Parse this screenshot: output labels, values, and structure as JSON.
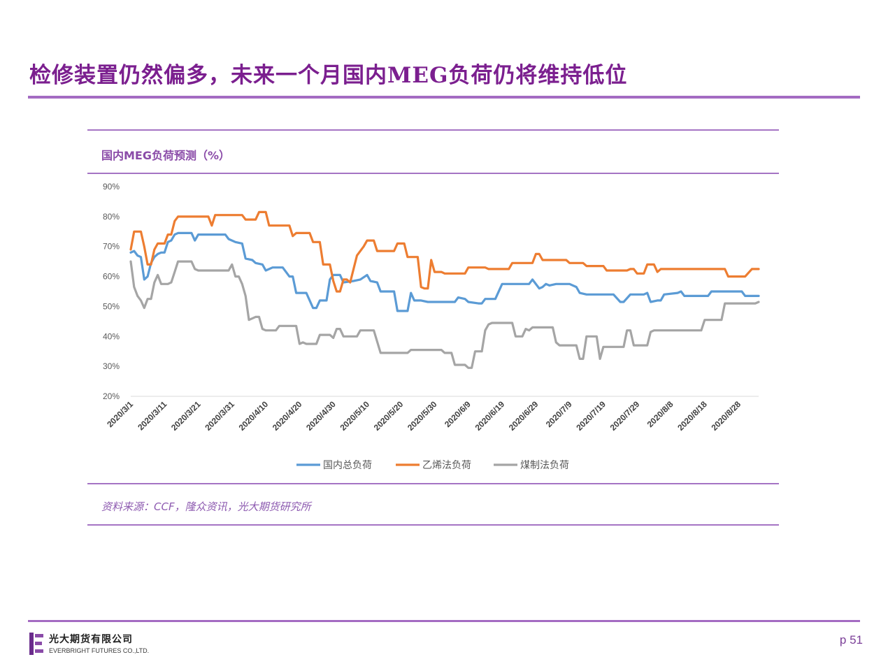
{
  "slide": {
    "title": "检修装置仍然偏多，未来一个月国内MEG负荷仍将维持低位",
    "page_number": "p 51",
    "source_note": "资料来源：CCF，隆众资讯，光大期货研究所",
    "logo": {
      "cn": "光大期货有限公司",
      "en": "EVERBRIGHT FUTURES CO.,LTD.",
      "icon": "everbright-logo-icon"
    },
    "accent_color": "#a46bc2"
  },
  "chart_data": {
    "type": "line",
    "title": "国内MEG负荷预测（%）",
    "xlabel": "",
    "ylabel": "",
    "ylim": [
      0.2,
      0.9
    ],
    "y_ticks": [
      "20%",
      "30%",
      "40%",
      "50%",
      "60%",
      "70%",
      "80%",
      "90%"
    ],
    "x_ticks": [
      "2020/3/1",
      "2020/3/11",
      "2020/3/21",
      "2020/3/31",
      "2020/4/10",
      "2020/4/20",
      "2020/4/30",
      "2020/5/10",
      "2020/5/20",
      "2020/5/30",
      "2020/6/9",
      "2020/6/19",
      "2020/6/29",
      "2020/7/9",
      "2020/7/19",
      "2020/7/29",
      "2020/8/8",
      "2020/8/18",
      "2020/8/28"
    ],
    "x_domain": [
      "2020/3/1",
      "2020/9/3"
    ],
    "grid": false,
    "legend_position": "bottom",
    "series": [
      {
        "name": "国内总负荷",
        "color": "#5b9bd5",
        "points": [
          [
            "2020/3/1",
            0.68
          ],
          [
            "2020/3/2",
            0.685
          ],
          [
            "2020/3/3",
            0.67
          ],
          [
            "2020/3/4",
            0.665
          ],
          [
            "2020/3/5",
            0.59
          ],
          [
            "2020/3/6",
            0.6
          ],
          [
            "2020/3/7",
            0.645
          ],
          [
            "2020/3/8",
            0.665
          ],
          [
            "2020/3/9",
            0.675
          ],
          [
            "2020/3/10",
            0.68
          ],
          [
            "2020/3/11",
            0.68
          ],
          [
            "2020/3/12",
            0.715
          ],
          [
            "2020/3/13",
            0.72
          ],
          [
            "2020/3/14",
            0.74
          ],
          [
            "2020/3/15",
            0.745
          ],
          [
            "2020/3/19",
            0.745
          ],
          [
            "2020/3/20",
            0.72
          ],
          [
            "2020/3/21",
            0.74
          ],
          [
            "2020/3/29",
            0.74
          ],
          [
            "2020/3/30",
            0.725
          ],
          [
            "2020/4/1",
            0.715
          ],
          [
            "2020/4/3",
            0.71
          ],
          [
            "2020/4/4",
            0.66
          ],
          [
            "2020/4/6",
            0.655
          ],
          [
            "2020/4/7",
            0.645
          ],
          [
            "2020/4/9",
            0.64
          ],
          [
            "2020/4/10",
            0.62
          ],
          [
            "2020/4/12",
            0.63
          ],
          [
            "2020/4/15",
            0.63
          ],
          [
            "2020/4/17",
            0.6
          ],
          [
            "2020/4/18",
            0.6
          ],
          [
            "2020/4/19",
            0.545
          ],
          [
            "2020/4/22",
            0.545
          ],
          [
            "2020/4/24",
            0.495
          ],
          [
            "2020/4/25",
            0.495
          ],
          [
            "2020/4/26",
            0.52
          ],
          [
            "2020/4/28",
            0.52
          ],
          [
            "2020/4/29",
            0.59
          ],
          [
            "2020/4/30",
            0.605
          ],
          [
            "2020/5/2",
            0.605
          ],
          [
            "2020/5/3",
            0.58
          ],
          [
            "2020/5/6",
            0.585
          ],
          [
            "2020/5/8",
            0.59
          ],
          [
            "2020/5/10",
            0.605
          ],
          [
            "2020/5/11",
            0.585
          ],
          [
            "2020/5/13",
            0.58
          ],
          [
            "2020/5/14",
            0.55
          ],
          [
            "2020/5/18",
            0.55
          ],
          [
            "2020/5/19",
            0.485
          ],
          [
            "2020/5/22",
            0.485
          ],
          [
            "2020/5/23",
            0.545
          ],
          [
            "2020/5/24",
            0.52
          ],
          [
            "2020/5/26",
            0.52
          ],
          [
            "2020/5/28",
            0.515
          ],
          [
            "2020/6/5",
            0.515
          ],
          [
            "2020/6/6",
            0.53
          ],
          [
            "2020/6/8",
            0.525
          ],
          [
            "2020/6/9",
            0.515
          ],
          [
            "2020/6/12",
            0.51
          ],
          [
            "2020/6/13",
            0.51
          ],
          [
            "2020/6/14",
            0.525
          ],
          [
            "2020/6/17",
            0.525
          ],
          [
            "2020/6/19",
            0.575
          ],
          [
            "2020/6/27",
            0.575
          ],
          [
            "2020/6/28",
            0.59
          ],
          [
            "2020/6/30",
            0.56
          ],
          [
            "2020/7/1",
            0.565
          ],
          [
            "2020/7/2",
            0.575
          ],
          [
            "2020/7/3",
            0.57
          ],
          [
            "2020/7/5",
            0.575
          ],
          [
            "2020/7/9",
            0.575
          ],
          [
            "2020/7/11",
            0.565
          ],
          [
            "2020/7/12",
            0.545
          ],
          [
            "2020/7/14",
            0.54
          ],
          [
            "2020/7/22",
            0.54
          ],
          [
            "2020/7/24",
            0.515
          ],
          [
            "2020/7/25",
            0.515
          ],
          [
            "2020/7/27",
            0.54
          ],
          [
            "2020/7/31",
            0.54
          ],
          [
            "2020/8/1",
            0.545
          ],
          [
            "2020/8/2",
            0.515
          ],
          [
            "2020/8/4",
            0.52
          ],
          [
            "2020/8/5",
            0.52
          ],
          [
            "2020/8/6",
            0.54
          ],
          [
            "2020/8/10",
            0.545
          ],
          [
            "2020/8/11",
            0.55
          ],
          [
            "2020/8/12",
            0.535
          ],
          [
            "2020/8/19",
            0.535
          ],
          [
            "2020/8/20",
            0.55
          ],
          [
            "2020/8/29",
            0.55
          ],
          [
            "2020/8/30",
            0.535
          ],
          [
            "2020/9/1",
            0.535
          ],
          [
            "2020/9/3",
            0.535
          ]
        ]
      },
      {
        "name": "乙烯法负荷",
        "color": "#ed7d31",
        "points": [
          [
            "2020/3/1",
            0.69
          ],
          [
            "2020/3/2",
            0.75
          ],
          [
            "2020/3/4",
            0.75
          ],
          [
            "2020/3/5",
            0.7
          ],
          [
            "2020/3/6",
            0.64
          ],
          [
            "2020/3/7",
            0.64
          ],
          [
            "2020/3/8",
            0.69
          ],
          [
            "2020/3/9",
            0.71
          ],
          [
            "2020/3/11",
            0.71
          ],
          [
            "2020/3/12",
            0.74
          ],
          [
            "2020/3/13",
            0.74
          ],
          [
            "2020/3/14",
            0.785
          ],
          [
            "2020/3/15",
            0.8
          ],
          [
            "2020/3/24",
            0.8
          ],
          [
            "2020/3/25",
            0.77
          ],
          [
            "2020/3/26",
            0.805
          ],
          [
            "2020/4/3",
            0.805
          ],
          [
            "2020/4/4",
            0.79
          ],
          [
            "2020/4/7",
            0.79
          ],
          [
            "2020/4/8",
            0.815
          ],
          [
            "2020/4/10",
            0.815
          ],
          [
            "2020/4/11",
            0.77
          ],
          [
            "2020/4/17",
            0.77
          ],
          [
            "2020/4/18",
            0.735
          ],
          [
            "2020/4/19",
            0.745
          ],
          [
            "2020/4/23",
            0.745
          ],
          [
            "2020/4/24",
            0.715
          ],
          [
            "2020/4/26",
            0.715
          ],
          [
            "2020/4/27",
            0.64
          ],
          [
            "2020/4/28",
            0.64
          ],
          [
            "2020/4/29",
            0.64
          ],
          [
            "2020/4/30",
            0.585
          ],
          [
            "2020/5/1",
            0.55
          ],
          [
            "2020/5/2",
            0.55
          ],
          [
            "2020/5/3",
            0.59
          ],
          [
            "2020/5/4",
            0.59
          ],
          [
            "2020/5/5",
            0.58
          ],
          [
            "2020/5/7",
            0.67
          ],
          [
            "2020/5/9",
            0.7
          ],
          [
            "2020/5/10",
            0.72
          ],
          [
            "2020/5/12",
            0.72
          ],
          [
            "2020/5/13",
            0.685
          ],
          [
            "2020/5/17",
            0.685
          ],
          [
            "2020/5/18",
            0.685
          ],
          [
            "2020/5/19",
            0.71
          ],
          [
            "2020/5/21",
            0.71
          ],
          [
            "2020/5/22",
            0.665
          ],
          [
            "2020/5/25",
            0.665
          ],
          [
            "2020/5/26",
            0.565
          ],
          [
            "2020/5/27",
            0.56
          ],
          [
            "2020/5/28",
            0.56
          ],
          [
            "2020/5/29",
            0.655
          ],
          [
            "2020/5/30",
            0.615
          ],
          [
            "2020/6/1",
            0.615
          ],
          [
            "2020/6/2",
            0.61
          ],
          [
            "2020/6/8",
            0.61
          ],
          [
            "2020/6/9",
            0.63
          ],
          [
            "2020/6/14",
            0.63
          ],
          [
            "2020/6/15",
            0.625
          ],
          [
            "2020/6/21",
            0.625
          ],
          [
            "2020/6/22",
            0.645
          ],
          [
            "2020/6/28",
            0.645
          ],
          [
            "2020/6/29",
            0.675
          ],
          [
            "2020/6/30",
            0.675
          ],
          [
            "2020/7/1",
            0.655
          ],
          [
            "2020/7/8",
            0.655
          ],
          [
            "2020/7/9",
            0.645
          ],
          [
            "2020/7/13",
            0.645
          ],
          [
            "2020/7/14",
            0.635
          ],
          [
            "2020/7/19",
            0.635
          ],
          [
            "2020/7/20",
            0.62
          ],
          [
            "2020/7/26",
            0.62
          ],
          [
            "2020/7/27",
            0.625
          ],
          [
            "2020/7/28",
            0.625
          ],
          [
            "2020/7/29",
            0.61
          ],
          [
            "2020/7/31",
            0.61
          ],
          [
            "2020/8/1",
            0.64
          ],
          [
            "2020/8/3",
            0.64
          ],
          [
            "2020/8/4",
            0.615
          ],
          [
            "2020/8/5",
            0.625
          ],
          [
            "2020/8/24",
            0.625
          ],
          [
            "2020/8/25",
            0.6
          ],
          [
            "2020/8/26",
            0.6
          ],
          [
            "2020/8/30",
            0.6
          ],
          [
            "2020/9/1",
            0.625
          ],
          [
            "2020/9/3",
            0.625
          ]
        ]
      },
      {
        "name": "煤制法负荷",
        "color": "#a5a5a5",
        "points": [
          [
            "2020/3/1",
            0.65
          ],
          [
            "2020/3/2",
            0.565
          ],
          [
            "2020/3/3",
            0.535
          ],
          [
            "2020/3/4",
            0.52
          ],
          [
            "2020/3/5",
            0.495
          ],
          [
            "2020/3/6",
            0.525
          ],
          [
            "2020/3/7",
            0.525
          ],
          [
            "2020/3/8",
            0.58
          ],
          [
            "2020/3/9",
            0.605
          ],
          [
            "2020/3/10",
            0.575
          ],
          [
            "2020/3/12",
            0.575
          ],
          [
            "2020/3/13",
            0.58
          ],
          [
            "2020/3/14",
            0.615
          ],
          [
            "2020/3/15",
            0.65
          ],
          [
            "2020/3/19",
            0.65
          ],
          [
            "2020/3/20",
            0.625
          ],
          [
            "2020/3/21",
            0.62
          ],
          [
            "2020/3/30",
            0.62
          ],
          [
            "2020/3/31",
            0.64
          ],
          [
            "2020/4/1",
            0.6
          ],
          [
            "2020/4/2",
            0.6
          ],
          [
            "2020/4/3",
            0.575
          ],
          [
            "2020/4/4",
            0.535
          ],
          [
            "2020/4/5",
            0.455
          ],
          [
            "2020/4/7",
            0.465
          ],
          [
            "2020/4/8",
            0.465
          ],
          [
            "2020/4/9",
            0.425
          ],
          [
            "2020/4/10",
            0.42
          ],
          [
            "2020/4/13",
            0.42
          ],
          [
            "2020/4/14",
            0.435
          ],
          [
            "2020/4/19",
            0.435
          ],
          [
            "2020/4/20",
            0.375
          ],
          [
            "2020/4/21",
            0.38
          ],
          [
            "2020/4/22",
            0.375
          ],
          [
            "2020/4/25",
            0.375
          ],
          [
            "2020/4/26",
            0.405
          ],
          [
            "2020/4/29",
            0.405
          ],
          [
            "2020/4/30",
            0.395
          ],
          [
            "2020/5/1",
            0.425
          ],
          [
            "2020/5/2",
            0.425
          ],
          [
            "2020/5/3",
            0.4
          ],
          [
            "2020/5/7",
            0.4
          ],
          [
            "2020/5/8",
            0.42
          ],
          [
            "2020/5/12",
            0.42
          ],
          [
            "2020/5/14",
            0.345
          ],
          [
            "2020/5/22",
            0.345
          ],
          [
            "2020/5/23",
            0.355
          ],
          [
            "2020/6/1",
            0.355
          ],
          [
            "2020/6/2",
            0.345
          ],
          [
            "2020/6/4",
            0.345
          ],
          [
            "2020/6/5",
            0.305
          ],
          [
            "2020/6/8",
            0.305
          ],
          [
            "2020/6/9",
            0.295
          ],
          [
            "2020/6/10",
            0.295
          ],
          [
            "2020/6/11",
            0.35
          ],
          [
            "2020/6/13",
            0.35
          ],
          [
            "2020/6/14",
            0.42
          ],
          [
            "2020/6/15",
            0.44
          ],
          [
            "2020/6/16",
            0.445
          ],
          [
            "2020/6/22",
            0.445
          ],
          [
            "2020/6/23",
            0.4
          ],
          [
            "2020/6/25",
            0.4
          ],
          [
            "2020/6/26",
            0.425
          ],
          [
            "2020/6/27",
            0.42
          ],
          [
            "2020/6/28",
            0.43
          ],
          [
            "2020/7/4",
            0.43
          ],
          [
            "2020/7/5",
            0.38
          ],
          [
            "2020/7/6",
            0.37
          ],
          [
            "2020/7/11",
            0.37
          ],
          [
            "2020/7/12",
            0.325
          ],
          [
            "2020/7/13",
            0.325
          ],
          [
            "2020/7/14",
            0.4
          ],
          [
            "2020/7/17",
            0.4
          ],
          [
            "2020/7/18",
            0.325
          ],
          [
            "2020/7/19",
            0.365
          ],
          [
            "2020/7/25",
            0.365
          ],
          [
            "2020/7/26",
            0.42
          ],
          [
            "2020/7/27",
            0.42
          ],
          [
            "2020/7/28",
            0.37
          ],
          [
            "2020/8/1",
            0.37
          ],
          [
            "2020/8/2",
            0.415
          ],
          [
            "2020/8/3",
            0.42
          ],
          [
            "2020/8/17",
            0.42
          ],
          [
            "2020/8/18",
            0.455
          ],
          [
            "2020/8/23",
            0.455
          ],
          [
            "2020/8/24",
            0.51
          ],
          [
            "2020/9/2",
            0.51
          ],
          [
            "2020/9/3",
            0.515
          ]
        ]
      }
    ]
  }
}
